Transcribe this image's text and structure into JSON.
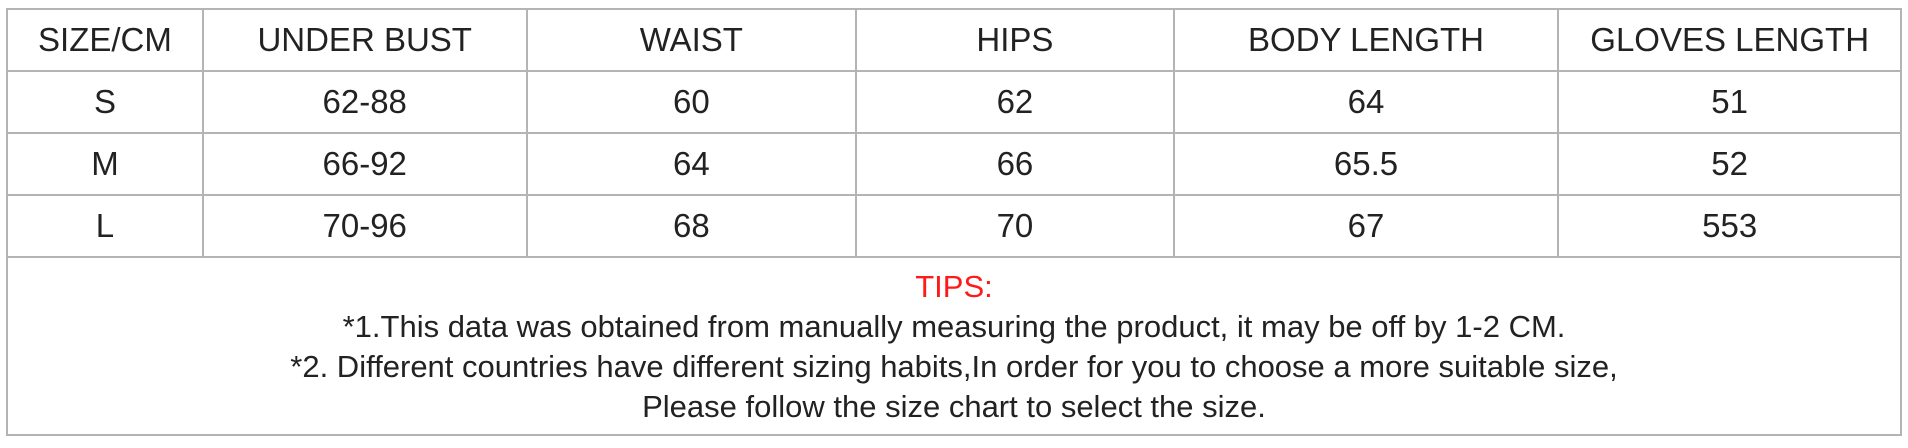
{
  "table": {
    "headers": [
      "SIZE/CM",
      "UNDER BUST",
      "WAIST",
      "HIPS",
      "BODY LENGTH",
      "GLOVES LENGTH"
    ],
    "rows": [
      [
        "S",
        "62-88",
        "60",
        "62",
        "64",
        "51"
      ],
      [
        "M",
        "66-92",
        "64",
        "66",
        "65.5",
        "52"
      ],
      [
        "L",
        "70-96",
        "68",
        "70",
        "67",
        "553"
      ]
    ]
  },
  "tips": {
    "title": "TIPS:",
    "lines": [
      "*1.This data was obtained from manually measuring the product, it may be off by 1-2 CM.",
      "*2. Different countries have different sizing habits,In order for you to choose a more suitable size,",
      "Please follow the size chart to select the size."
    ],
    "title_color": "#ff1a1a"
  }
}
